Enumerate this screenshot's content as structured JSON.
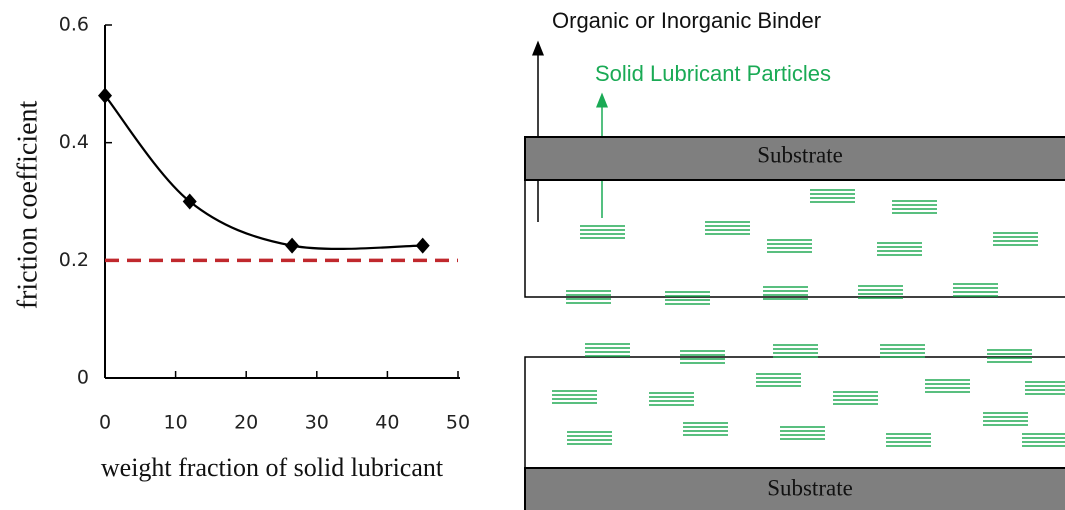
{
  "chart_data": {
    "type": "line",
    "x": [
      0,
      12,
      26.5,
      45
    ],
    "series": [
      {
        "name": "friction coefficient",
        "color": "#000000",
        "values": [
          0.48,
          0.3,
          0.225,
          0.225
        ]
      }
    ],
    "xlim": [
      0,
      50
    ],
    "xticks": [
      0,
      10,
      20,
      30,
      40,
      50
    ],
    "ylim": [
      0,
      0.6
    ],
    "yticks": [
      0,
      0.2,
      0.4,
      0.6
    ],
    "xlabel": "weight fraction of solid lubricant",
    "ylabel": "friction coefficient",
    "reference_line": {
      "value": 0.2,
      "color": "#c0282d"
    }
  },
  "diagram": {
    "binder_label": "Organic or Inorganic Binder",
    "particles_label": "Solid Lubricant Particles",
    "substrate_top": "Substrate",
    "substrate_bottom": "Substrate"
  }
}
